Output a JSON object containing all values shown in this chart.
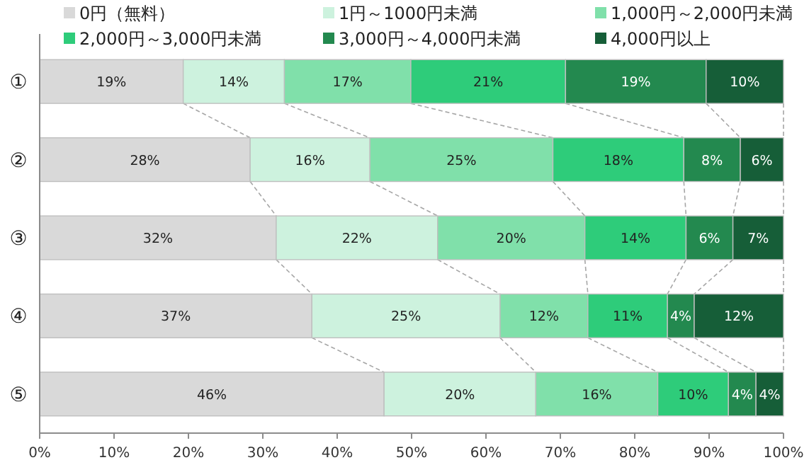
{
  "chart_data": {
    "type": "bar",
    "orientation": "horizontal",
    "stacked": true,
    "legend": "top",
    "grid": false,
    "categories": [
      "①",
      "②",
      "③",
      "④",
      "⑤"
    ],
    "xlim": [
      0,
      100
    ],
    "xticks": [
      {
        "value": 0,
        "label": "0%"
      },
      {
        "value": 10,
        "label": "10%"
      },
      {
        "value": 20,
        "label": "20%"
      },
      {
        "value": 30,
        "label": "30%"
      },
      {
        "value": 40,
        "label": "40%"
      },
      {
        "value": 50,
        "label": "50%"
      },
      {
        "value": 60,
        "label": "60%"
      },
      {
        "value": 70,
        "label": "70%"
      },
      {
        "value": 80,
        "label": "80%"
      },
      {
        "value": 90,
        "label": "90%"
      },
      {
        "value": 100,
        "label": "100%"
      }
    ],
    "series": [
      {
        "name": "0円（無料）",
        "color": "#d9d9d9",
        "values": [
          19.3,
          28.3,
          31.8,
          36.6,
          46.3
        ],
        "value_labels": [
          "19%",
          "28%",
          "32%",
          "37%",
          "46%"
        ]
      },
      {
        "name": "1円～1000円未満",
        "color": "#cdf2de",
        "values": [
          13.6,
          16.1,
          21.7,
          25.3,
          20.4
        ],
        "value_labels": [
          "14%",
          "16%",
          "22%",
          "25%",
          "20%"
        ]
      },
      {
        "name": "1,000円～2,000円未満",
        "color": "#80e0aa",
        "values": [
          17.0,
          24.6,
          19.8,
          11.8,
          16.4
        ],
        "value_labels": [
          "17%",
          "25%",
          "20%",
          "12%",
          "16%"
        ]
      },
      {
        "name": "2,000円～3,000円未満",
        "color": "#2ecc7a",
        "values": [
          20.8,
          17.6,
          13.6,
          10.7,
          9.5
        ],
        "value_labels": [
          "21%",
          "18%",
          "14%",
          "11%",
          "10%"
        ]
      },
      {
        "name": "3,000円～4,000円未満",
        "color": "#23894f",
        "values": [
          18.9,
          7.6,
          6.3,
          3.6,
          3.7
        ],
        "value_labels": [
          "19%",
          "8%",
          "6%",
          "4%",
          "4%"
        ]
      },
      {
        "name": "4,000円以上",
        "color": "#165e38",
        "values": [
          10.4,
          5.8,
          6.8,
          12.0,
          3.7
        ],
        "value_labels": [
          "10%",
          "6%",
          "7%",
          "12%",
          "4%"
        ]
      }
    ]
  }
}
